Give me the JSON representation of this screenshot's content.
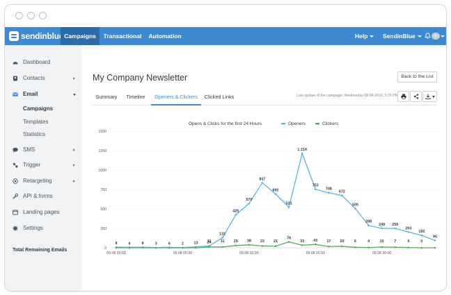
{
  "topnav": {
    "logo_text": "sendinblue",
    "links": [
      {
        "label": "Campaigns",
        "active": true
      },
      {
        "label": "Transactional",
        "active": false
      },
      {
        "label": "Automation",
        "active": false
      }
    ],
    "help": "Help",
    "account": "SendinBlue",
    "notification_badge": "0"
  },
  "sidebar": {
    "items": [
      {
        "label": "Dashboard",
        "icon": "dashboard-icon",
        "arrow": false
      },
      {
        "label": "Contacts",
        "icon": "contacts-icon",
        "arrow": true
      },
      {
        "label": "Email",
        "icon": "email-icon",
        "arrow": true,
        "expanded": true
      },
      {
        "label": "SMS",
        "icon": "sms-icon",
        "arrow": true
      },
      {
        "label": "Trigger",
        "icon": "trigger-icon",
        "arrow": true
      },
      {
        "label": "Retargeting",
        "icon": "retargeting-icon",
        "arrow": true
      },
      {
        "label": "API & forms",
        "icon": "api-icon",
        "arrow": false
      },
      {
        "label": "Landing pages",
        "icon": "landing-pages-icon",
        "arrow": false
      },
      {
        "label": "Settings",
        "icon": "settings-icon",
        "arrow": false
      }
    ],
    "email_sub": [
      {
        "label": "Campaigns",
        "active": true
      },
      {
        "label": "Templates",
        "active": false
      },
      {
        "label": "Statistics",
        "active": false
      }
    ],
    "footer": "Total Remaining Emails"
  },
  "main": {
    "title": "My Company Newsletter",
    "back_button": "Back to the List",
    "tabs": [
      {
        "label": "Summary",
        "active": false
      },
      {
        "label": "Timeline",
        "active": false
      },
      {
        "label": "Openers & Clickers",
        "active": true
      },
      {
        "label": "Clicked Links",
        "active": false
      }
    ],
    "last_update": "Last update of the campaign: Wednesday 08-08-2018, 5:25 PM"
  },
  "colors": {
    "accent": "#3f89d0",
    "openers": "#5ab4dc",
    "clickers": "#5aa85a"
  },
  "chart_data": {
    "type": "line",
    "title": "Opens & Clicks for the first 24 Hours",
    "legend_position": "top",
    "xlabel": "",
    "ylabel": "",
    "ylim": [
      0,
      1500
    ],
    "yticks": [
      0,
      250,
      500,
      750,
      1000,
      1250,
      1500
    ],
    "xtick_labels": [
      {
        "index": 0,
        "label": "09.08 00:00"
      },
      {
        "index": 5,
        "label": "09.08 05:00"
      },
      {
        "index": 10,
        "label": "09.08 10:00"
      },
      {
        "index": 15,
        "label": "09.08 15:00"
      },
      {
        "index": 20,
        "label": "09.08 20:00"
      }
    ],
    "series": [
      {
        "name": "Openers",
        "color": "#5ab4dc",
        "values": [
          8,
          6,
          8,
          3,
          6,
          2,
          13,
          24,
          131,
          425,
          570,
          837,
          692,
          521,
          1214,
          753,
          708,
          672,
          505,
          288,
          249,
          250,
          203,
          160,
          95
        ],
        "labels": [
          "8",
          "6",
          "8",
          "3",
          "6",
          "2",
          "13",
          "24",
          "131",
          "425",
          "570",
          "837",
          "692",
          "521",
          "1 214",
          "753",
          "708",
          "672",
          "505",
          "288",
          "249",
          "250",
          "203",
          "160",
          "95"
        ]
      },
      {
        "name": "Clickers",
        "color": "#5aa85a",
        "values": [
          0,
          0,
          0,
          0,
          0,
          0,
          0,
          11,
          11,
          29,
          38,
          23,
          21,
          76,
          33,
          43,
          17,
          20,
          6,
          4,
          10,
          7,
          4,
          0,
          0
        ],
        "labels": [
          "",
          "",
          "",
          "",
          "",
          "",
          "",
          "11",
          "11",
          "29",
          "38",
          "23",
          "21",
          "76",
          "33",
          "43",
          "17",
          "20",
          "6",
          "4",
          "10",
          "7",
          "4",
          "0",
          ""
        ]
      }
    ]
  }
}
